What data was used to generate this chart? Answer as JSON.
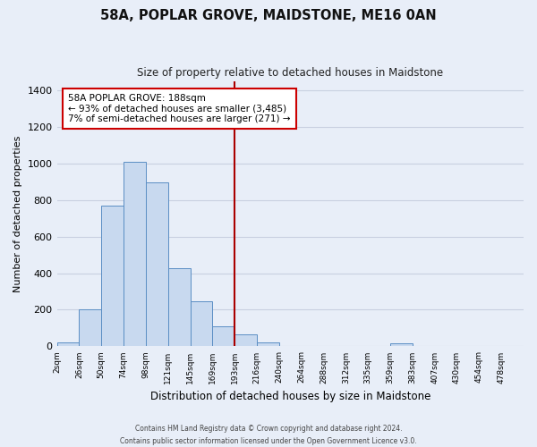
{
  "title": "58A, POPLAR GROVE, MAIDSTONE, ME16 0AN",
  "subtitle": "Size of property relative to detached houses in Maidstone",
  "xlabel": "Distribution of detached houses by size in Maidstone",
  "ylabel": "Number of detached properties",
  "bin_labels": [
    "2sqm",
    "26sqm",
    "50sqm",
    "74sqm",
    "98sqm",
    "121sqm",
    "145sqm",
    "169sqm",
    "193sqm",
    "216sqm",
    "240sqm",
    "264sqm",
    "288sqm",
    "312sqm",
    "335sqm",
    "359sqm",
    "383sqm",
    "407sqm",
    "430sqm",
    "454sqm",
    "478sqm"
  ],
  "bar_heights": [
    20,
    200,
    770,
    1010,
    895,
    425,
    245,
    110,
    68,
    22,
    0,
    0,
    0,
    0,
    0,
    18,
    0,
    0,
    0,
    0,
    0
  ],
  "bar_color": "#c8d9ef",
  "bar_edge_color": "#5b8ec4",
  "vline_color": "#aa0000",
  "annotation_title": "58A POPLAR GROVE: 188sqm",
  "annotation_line1": "← 93% of detached houses are smaller (3,485)",
  "annotation_line2": "7% of semi-detached houses are larger (271) →",
  "annotation_box_color": "#ffffff",
  "annotation_box_edge": "#cc0000",
  "background_color": "#e8eef8",
  "grid_color": "#c8d0e0",
  "ylim": [
    0,
    1450
  ],
  "yticks": [
    0,
    200,
    400,
    600,
    800,
    1000,
    1200,
    1400
  ],
  "footer_line1": "Contains HM Land Registry data © Crown copyright and database right 2024.",
  "footer_line2": "Contains public sector information licensed under the Open Government Licence v3.0."
}
